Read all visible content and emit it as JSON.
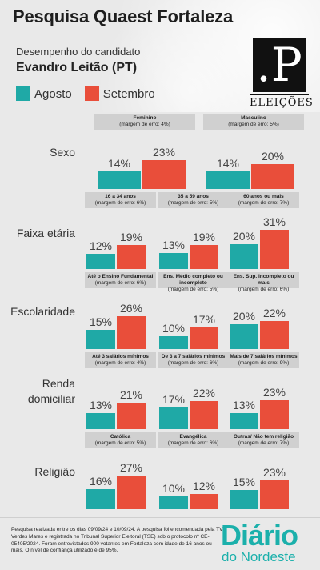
{
  "header": {
    "title": "Pesquisa Quaest Fortaleza",
    "subtitle": "Desempenho do candidato",
    "candidate": "Evandro Leitão (PT)",
    "logo_letter": ".P",
    "logo_text": "ELEIÇÕES"
  },
  "legend": [
    {
      "label": "Agosto",
      "color": "#1fa9a6"
    },
    {
      "label": "Setembro",
      "color": "#e94e3a"
    }
  ],
  "chart_data": {
    "type": "bar",
    "ylabel": "",
    "series_names": [
      "Agosto",
      "Setembro"
    ],
    "groups": [
      {
        "category": "Sexo",
        "subgroups": [
          {
            "name": "Feminino",
            "note": "(margem de erro: 4%)",
            "values": [
              14,
              23
            ]
          },
          {
            "name": "Masculino",
            "note": "(margem de erro: 5%)",
            "values": [
              14,
              20
            ]
          }
        ]
      },
      {
        "category": "Faixa etária",
        "subgroups": [
          {
            "name": "16 a 34 anos",
            "note": "(margem de erro: 6%)",
            "values": [
              12,
              19
            ]
          },
          {
            "name": "35 a 59 anos",
            "note": "(margem de erro: 5%)",
            "values": [
              13,
              19
            ]
          },
          {
            "name": "60 anos ou mais",
            "note": "(margem de erro: 7%)",
            "values": [
              20,
              31
            ]
          }
        ]
      },
      {
        "category": "Escolaridade",
        "subgroups": [
          {
            "name": "Até o Ensino Fundamental",
            "note": "(margem de erro: 6%)",
            "values": [
              15,
              26
            ]
          },
          {
            "name": "Ens. Médio completo ou incompleto",
            "note": "(margem de erro: 5%)",
            "values": [
              10,
              17
            ]
          },
          {
            "name": "Ens. Sup. incompleto ou mais",
            "note": "(margem de erro: 6%)",
            "values": [
              20,
              22
            ]
          }
        ]
      },
      {
        "category": "Renda domiciliar",
        "subgroups": [
          {
            "name": "Até 3 salários mínimos",
            "note": "(margem de erro: 4%)",
            "values": [
              13,
              21
            ]
          },
          {
            "name": "De 3 a 7 salários mínimos",
            "note": "(margem de erro: 6%)",
            "values": [
              17,
              22
            ]
          },
          {
            "name": "Mais de 7 salários mínimos",
            "note": "(margem de erro: 9%)",
            "values": [
              13,
              23
            ]
          }
        ]
      },
      {
        "category": "Religião",
        "subgroups": [
          {
            "name": "Católica",
            "note": "(margem de erro: 5%)",
            "values": [
              16,
              27
            ]
          },
          {
            "name": "Evangélica",
            "note": "(margem de erro: 6%)",
            "values": [
              10,
              12
            ]
          },
          {
            "name": "Outras/ Não tem religião",
            "note": "(margem de erro: 7%)",
            "values": [
              15,
              23
            ]
          }
        ]
      }
    ]
  },
  "footer": {
    "text": "Pesquisa realizada entre os dias 09/09/24 e 10/09/24. A pesquisa foi encomendada pela TV Verdes Mares e registrada no Tribunal Superior Eleitoral (TSE) sob o protocolo nº CE-05405/2024. Foram entrevistados 900 votantes em Fortaleza com idade de 16 anos ou mais. O nível de confiança utilizado é de 95%.",
    "brand_line1": "Diário",
    "brand_line2": "do Nordeste"
  }
}
